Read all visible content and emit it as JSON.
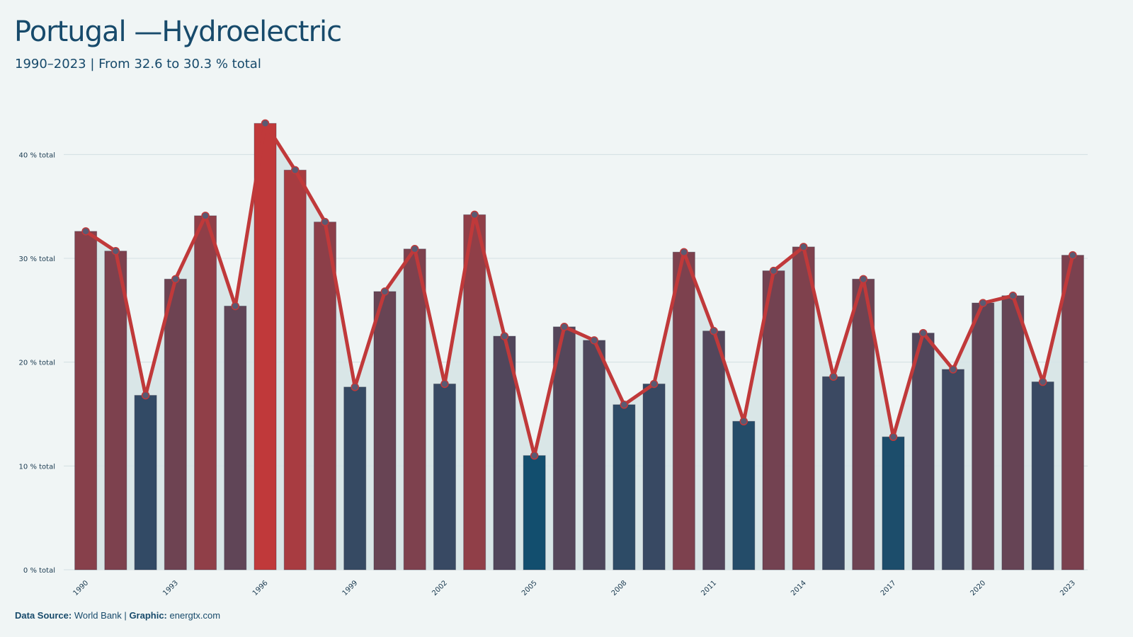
{
  "header": {
    "title": "Portugal —Hydroelectric",
    "subtitle": "1990–2023 | From 32.6 to 30.3 % total"
  },
  "footer": {
    "source_label": "Data Source:",
    "source_value": "World Bank",
    "separator": "|",
    "graphic_label": "Graphic:",
    "graphic_value": "energtx.com"
  },
  "colors": {
    "background": "#f0f5f5",
    "line": "#c0393a",
    "high": "#c0393a",
    "low": "#124e6e",
    "area": "#d6e4e6"
  },
  "chart_data": {
    "type": "bar",
    "x": [
      1990,
      1991,
      1992,
      1993,
      1994,
      1995,
      1996,
      1997,
      1998,
      1999,
      2000,
      2001,
      2002,
      2003,
      2004,
      2005,
      2006,
      2007,
      2008,
      2009,
      2010,
      2011,
      2012,
      2013,
      2014,
      2015,
      2016,
      2017,
      2018,
      2019,
      2020,
      2021,
      2022,
      2023
    ],
    "values": [
      32.6,
      30.7,
      16.8,
      28.0,
      34.1,
      25.4,
      43.0,
      38.5,
      33.5,
      17.6,
      26.8,
      30.9,
      17.9,
      34.2,
      22.5,
      11.0,
      23.4,
      22.1,
      15.9,
      17.9,
      30.6,
      23.0,
      14.3,
      28.8,
      31.1,
      18.6,
      28.0,
      12.8,
      22.8,
      19.3,
      25.7,
      26.4,
      18.1,
      30.3
    ],
    "overlay": "line",
    "x_tick_labels": [
      "1990",
      "1993",
      "1996",
      "1999",
      "2002",
      "2005",
      "2008",
      "2011",
      "2014",
      "2017",
      "2020",
      "2023"
    ],
    "y_ticks": [
      0,
      10,
      20,
      30,
      40
    ],
    "y_tick_suffix": " % total",
    "ylim": [
      0,
      45
    ],
    "grid": true
  }
}
